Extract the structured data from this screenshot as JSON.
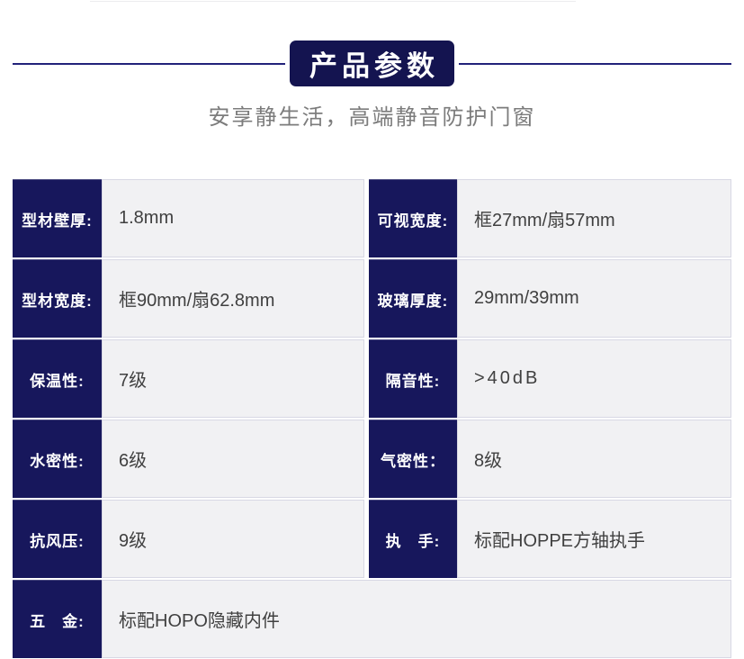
{
  "header": {
    "title_badge": "产品参数",
    "subtitle": "安享静生活，高端静音防护门窗"
  },
  "colors": {
    "navy_cell": "#17175c",
    "badge_navy": "#141450",
    "divider_blue": "#22227a",
    "value_bg": "#f1f1f3",
    "value_text": "#404040"
  },
  "spec_table": {
    "rows": [
      {
        "left_label": "型材壁厚:",
        "left_value": "1.8mm",
        "right_label": "可视宽度:",
        "right_value": "框27mm/扇57mm"
      },
      {
        "left_label": "型材宽度:",
        "left_value": "框90mm/扇62.8mm",
        "right_label": "玻璃厚度:",
        "right_value": "29mm/39mm"
      },
      {
        "left_label": "保温性:",
        "left_value": "7级",
        "right_label": "隔音性:",
        "right_value": ">40dB"
      },
      {
        "left_label": "水密性:",
        "left_value": "6级",
        "right_label": "气密性：",
        "right_value": "8级"
      },
      {
        "left_label": "抗风压:",
        "left_value": "9级",
        "right_label": "执　手:",
        "right_value": "标配HOPPE方轴执手"
      },
      {
        "left_label": "五　金:",
        "left_value": "标配HOPO隐藏内件"
      }
    ]
  }
}
